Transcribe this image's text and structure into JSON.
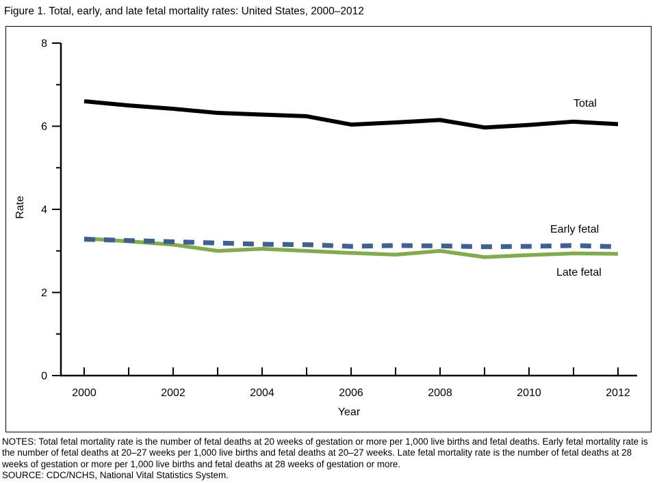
{
  "figure": {
    "title": "Figure 1. Total, early, and late fetal mortality rates: United States, 2000–2012"
  },
  "notes": {
    "notes_text": "NOTES: Total fetal mortality rate is the number of fetal deaths at 20 weeks of gestation or more per 1,000 live births and fetal deaths. Early fetal mortality rate is the number of fetal deaths at 20–27 weeks per 1,000 live births and fetal deaths at 20–27 weeks. Late fetal mortality rate is the number of fetal deaths at 28 weeks of gestation or more per 1,000 live births and fetal deaths at 28 weeks of gestation or more.",
    "source_text": "SOURCE: CDC/NCHS, National Vital Statistics System."
  },
  "chart_data": {
    "type": "line",
    "title": "Figure 1. Total, early, and late fetal mortality rates: United States, 2000–2012",
    "xlabel": "Year",
    "ylabel": "Rate",
    "x": [
      2000,
      2001,
      2002,
      2003,
      2004,
      2005,
      2006,
      2007,
      2008,
      2009,
      2010,
      2011,
      2012
    ],
    "x_tick_labels": [
      "2000",
      "2002",
      "2004",
      "2006",
      "2008",
      "2010",
      "2012"
    ],
    "y_tick_labels": [
      "0",
      "2",
      "4",
      "6",
      "8"
    ],
    "y_ticks_major": [
      0,
      2,
      4,
      6,
      8
    ],
    "y_ticks_minor": [
      1,
      3,
      5,
      7
    ],
    "xlim": [
      2000,
      2012
    ],
    "ylim": [
      0,
      8
    ],
    "grid": false,
    "legend_position": "inline annotations at right of lines",
    "series": [
      {
        "name": "Total",
        "color": "#000000",
        "style": "solid",
        "values": [
          6.6,
          6.5,
          6.42,
          6.32,
          6.28,
          6.24,
          6.04,
          6.09,
          6.15,
          5.97,
          6.03,
          6.11,
          6.05
        ]
      },
      {
        "name": "Early fetal",
        "color": "#40618f",
        "style": "dashed",
        "values": [
          3.28,
          3.25,
          3.22,
          3.19,
          3.16,
          3.15,
          3.11,
          3.13,
          3.12,
          3.1,
          3.11,
          3.13,
          3.1
        ]
      },
      {
        "name": "Late fetal",
        "color": "#84aa50",
        "style": "solid",
        "values": [
          3.3,
          3.23,
          3.15,
          3.0,
          3.05,
          3.0,
          2.95,
          2.91,
          3.0,
          2.85,
          2.9,
          2.94,
          2.93
        ]
      }
    ]
  }
}
